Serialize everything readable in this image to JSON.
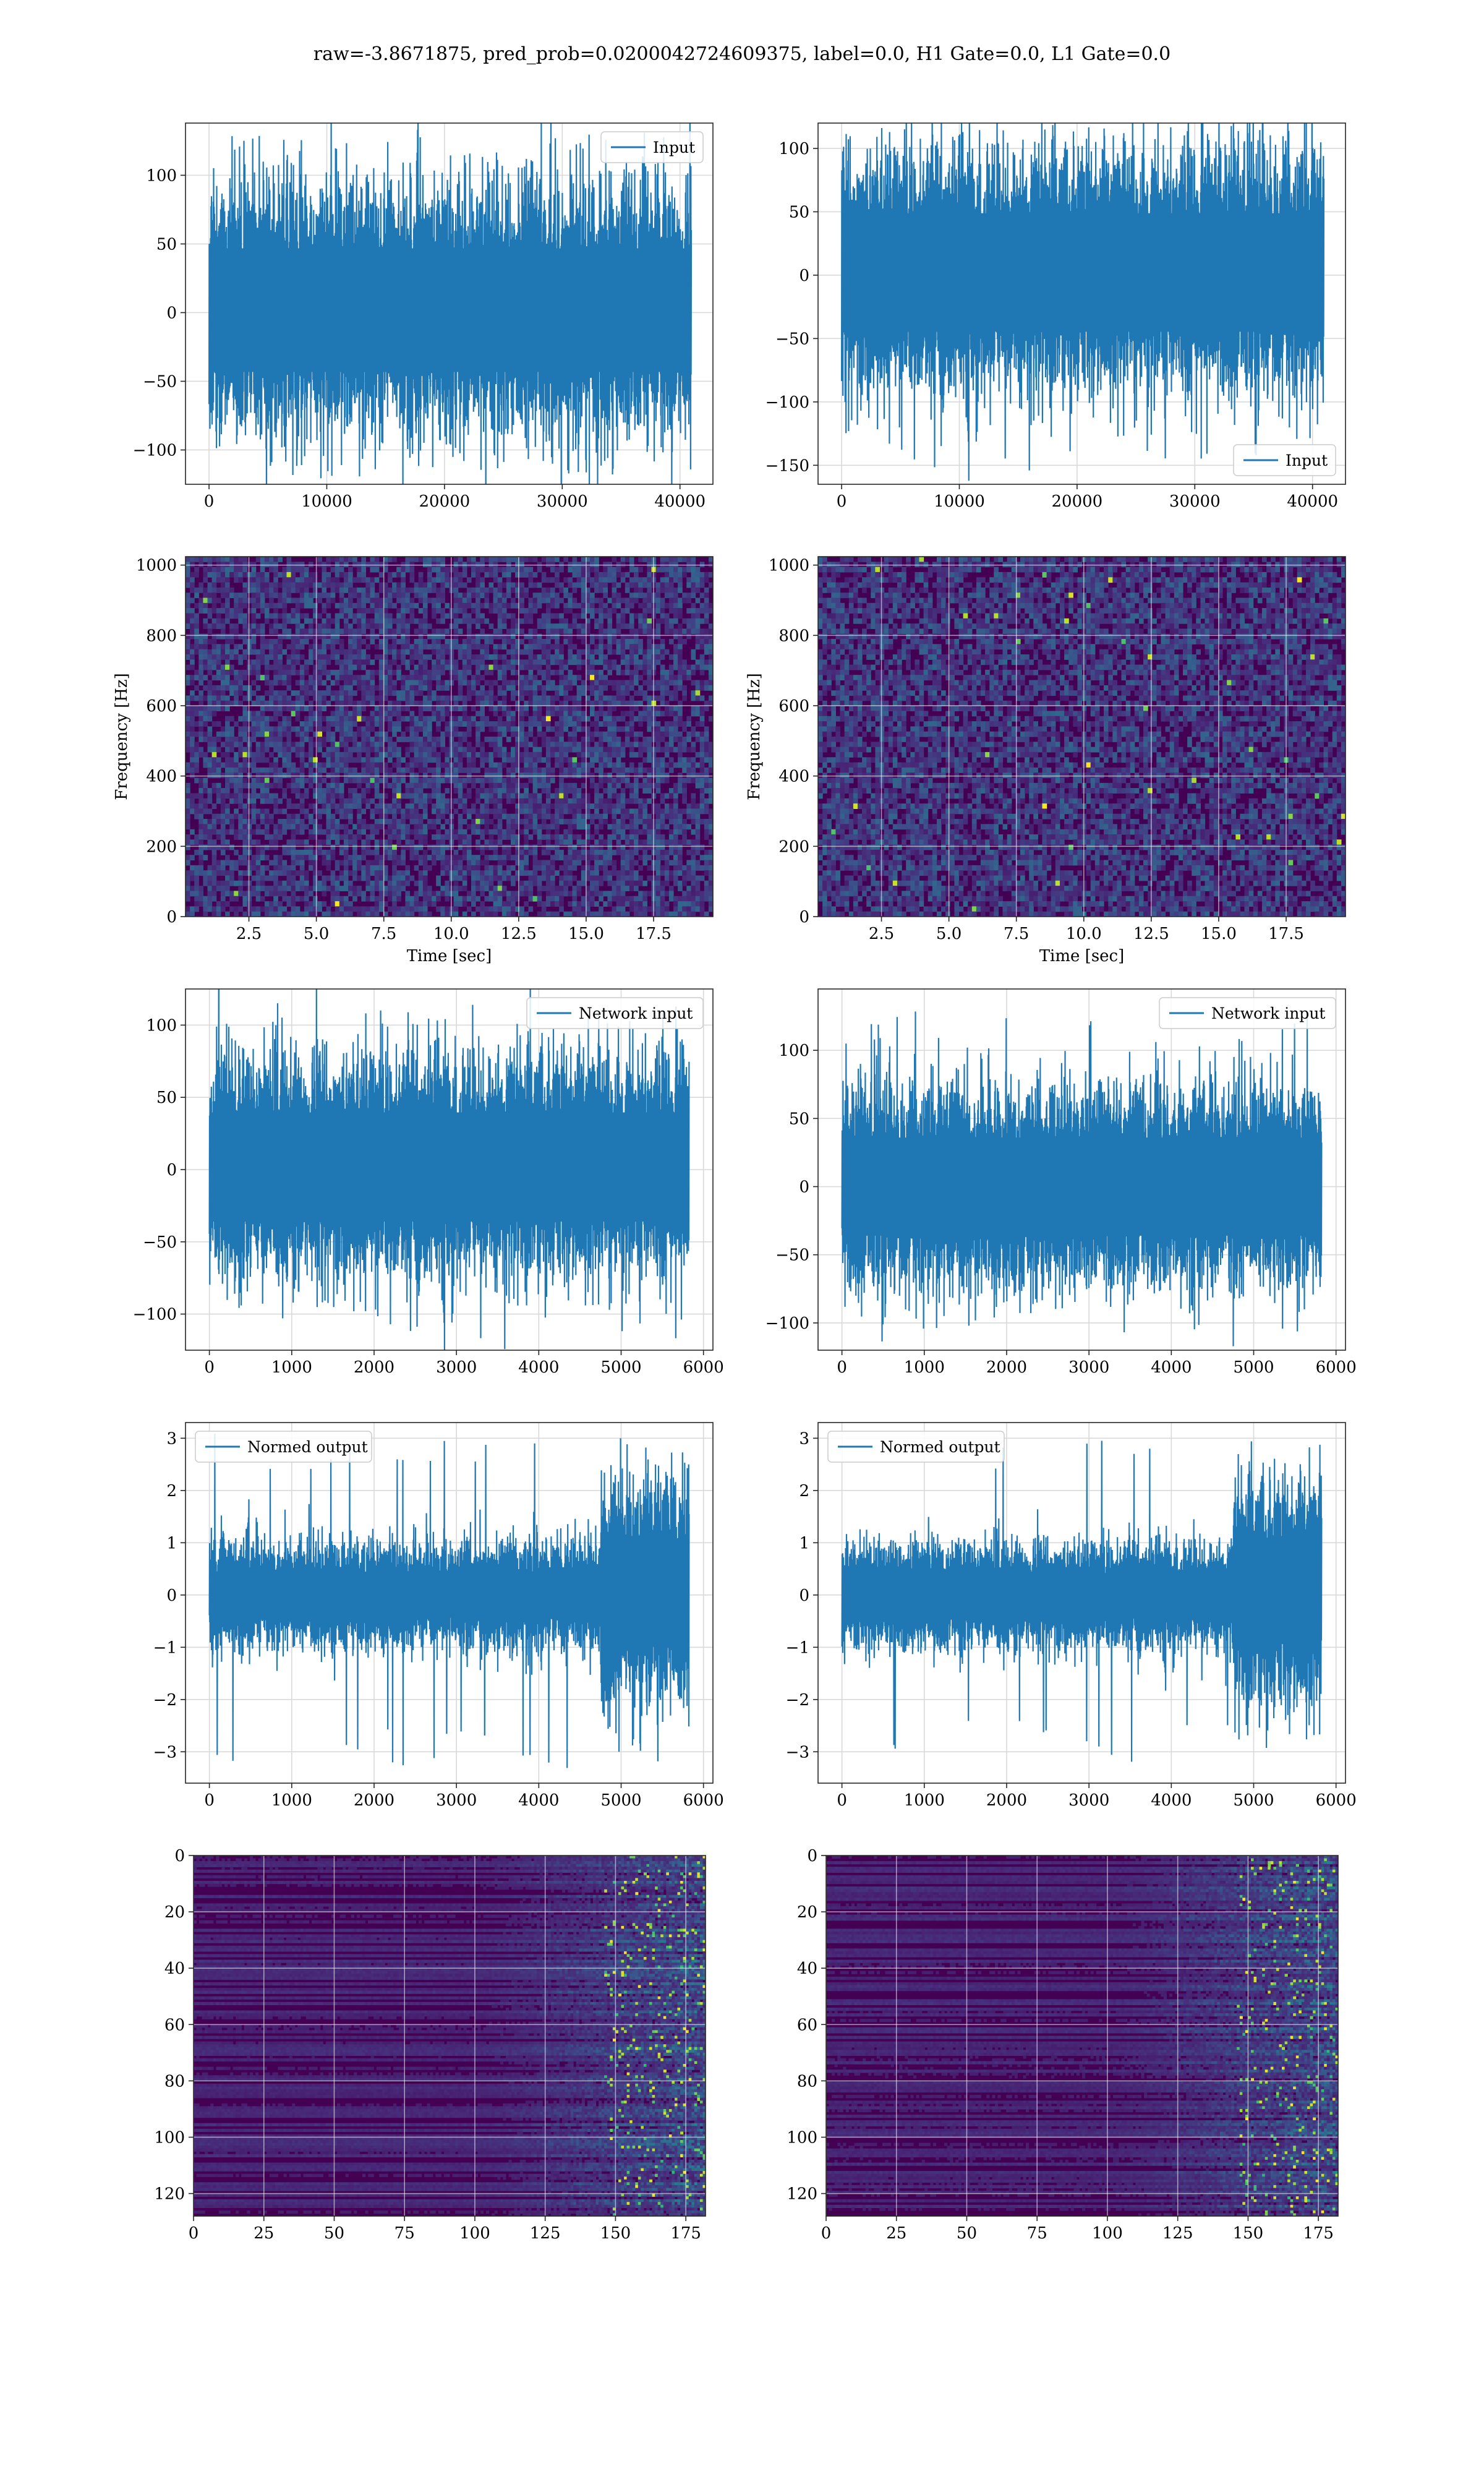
{
  "suptitle": "raw=-3.8671875, pred_prob=0.0200042724609375, label=0.0, H1 Gate=0.0, L1 Gate=0.0",
  "colors": {
    "line": "#1f77b4",
    "grid": "#d9d9d9",
    "viridis_dark": "#440154",
    "viridis_low": "#3b1b6b",
    "viridis_mid": "#21918c",
    "viridis_high": "#5ec962",
    "viridis_top": "#fde725"
  },
  "chart_data": [
    {
      "id": "h1-input",
      "type": "line",
      "legend": "Input",
      "legend_loc": "upper right",
      "xlim": [
        -2000,
        42800
      ],
      "ylim": [
        -125,
        138
      ],
      "xticks": [
        0,
        10000,
        20000,
        30000,
        40000
      ],
      "yticks": [
        -100,
        -50,
        0,
        50,
        100
      ],
      "x_range": [
        0,
        40960
      ],
      "envelope_pos": 65,
      "envelope_neg": -60,
      "peak_pos": 128,
      "peak_neg": -123,
      "grid": true
    },
    {
      "id": "l1-input",
      "type": "line",
      "legend": "Input",
      "legend_loc": "lower right",
      "xlim": [
        -2000,
        42800
      ],
      "ylim": [
        -165,
        120
      ],
      "xticks": [
        0,
        10000,
        20000,
        30000,
        40000
      ],
      "yticks": [
        -150,
        -100,
        -50,
        0,
        50,
        100
      ],
      "x_range": [
        0,
        40960
      ],
      "envelope_pos": 68,
      "envelope_neg": -62,
      "peak_pos": 117,
      "peak_neg": -152,
      "grid": true
    },
    {
      "id": "h1-spectrogram",
      "type": "heatmap",
      "xlabel": "Time [sec]",
      "ylabel": "Frequency [Hz]",
      "xlim": [
        0.15,
        19.7
      ],
      "ylim": [
        0,
        1024
      ],
      "xticks": [
        2.5,
        5.0,
        7.5,
        10.0,
        12.5,
        15.0,
        17.5
      ],
      "xtick_labels": [
        "2.5",
        "5.0",
        "7.5",
        "10.0",
        "12.5",
        "15.0",
        "17.5"
      ],
      "yticks": [
        0,
        200,
        400,
        600,
        800,
        1000
      ],
      "colormap": "viridis",
      "grid": true
    },
    {
      "id": "l1-spectrogram",
      "type": "heatmap",
      "xlabel": "Time [sec]",
      "ylabel": "Frequency [Hz]",
      "xlim": [
        0.15,
        19.7
      ],
      "ylim": [
        0,
        1024
      ],
      "xticks": [
        2.5,
        5.0,
        7.5,
        10.0,
        12.5,
        15.0,
        17.5
      ],
      "xtick_labels": [
        "2.5",
        "5.0",
        "7.5",
        "10.0",
        "12.5",
        "15.0",
        "17.5"
      ],
      "yticks": [
        0,
        200,
        400,
        600,
        800,
        1000
      ],
      "colormap": "viridis",
      "grid": true
    },
    {
      "id": "h1-network-input",
      "type": "line",
      "legend": "Network input",
      "legend_loc": "upper right",
      "xlim": [
        -290,
        6115
      ],
      "ylim": [
        -125,
        125
      ],
      "xticks": [
        0,
        1000,
        2000,
        3000,
        4000,
        5000,
        6000
      ],
      "yticks": [
        -100,
        -50,
        0,
        50,
        100
      ],
      "x_range": [
        0,
        5825
      ],
      "envelope_pos": 55,
      "envelope_neg": -50,
      "peak_pos": 112,
      "peak_neg": -112,
      "grid": true
    },
    {
      "id": "l1-network-input",
      "type": "line",
      "legend": "Network input",
      "legend_loc": "upper right",
      "xlim": [
        -290,
        6115
      ],
      "ylim": [
        -120,
        145
      ],
      "xticks": [
        0,
        1000,
        2000,
        3000,
        4000,
        5000,
        6000
      ],
      "yticks": [
        -100,
        -50,
        0,
        50,
        100
      ],
      "x_range": [
        0,
        5825
      ],
      "envelope_pos": 50,
      "envelope_neg": -50,
      "peak_pos": 132,
      "peak_neg": -108,
      "grid": true
    },
    {
      "id": "h1-normed-output",
      "type": "line",
      "legend": "Normed output",
      "legend_loc": "upper left",
      "xlim": [
        -290,
        6115
      ],
      "ylim": [
        -3.6,
        3.3
      ],
      "xticks": [
        0,
        1000,
        2000,
        3000,
        4000,
        5000,
        6000
      ],
      "yticks": [
        -3,
        -2,
        -1,
        0,
        1,
        2,
        3
      ],
      "x_range": [
        0,
        5825
      ],
      "envelope_pos": 0.7,
      "envelope_neg": -0.7,
      "peak_pos": 3.1,
      "peak_neg": -3.4,
      "burst_start": 4750,
      "grid": true
    },
    {
      "id": "l1-normed-output",
      "type": "line",
      "legend": "Normed output",
      "legend_loc": "upper left",
      "xlim": [
        -290,
        6115
      ],
      "ylim": [
        -3.6,
        3.3
      ],
      "xticks": [
        0,
        1000,
        2000,
        3000,
        4000,
        5000,
        6000
      ],
      "yticks": [
        -3,
        -2,
        -1,
        0,
        1,
        2,
        3
      ],
      "x_range": [
        0,
        5825
      ],
      "envelope_pos": 0.7,
      "envelope_neg": -0.7,
      "peak_pos": 3.0,
      "peak_neg": -3.2,
      "burst_start": 4750,
      "grid": true
    },
    {
      "id": "h1-feature-map",
      "type": "heatmap",
      "xlim": [
        0,
        182
      ],
      "ylim": [
        128,
        0
      ],
      "xticks": [
        0,
        25,
        50,
        75,
        100,
        125,
        150,
        175
      ],
      "yticks": [
        0,
        20,
        40,
        60,
        80,
        100,
        120
      ],
      "colormap": "viridis",
      "grid": true
    },
    {
      "id": "l1-feature-map",
      "type": "heatmap",
      "xlim": [
        0,
        182
      ],
      "ylim": [
        128,
        0
      ],
      "xticks": [
        0,
        25,
        50,
        75,
        100,
        125,
        150,
        175
      ],
      "yticks": [
        0,
        20,
        40,
        60,
        80,
        100,
        120
      ],
      "colormap": "viridis",
      "grid": true
    }
  ]
}
